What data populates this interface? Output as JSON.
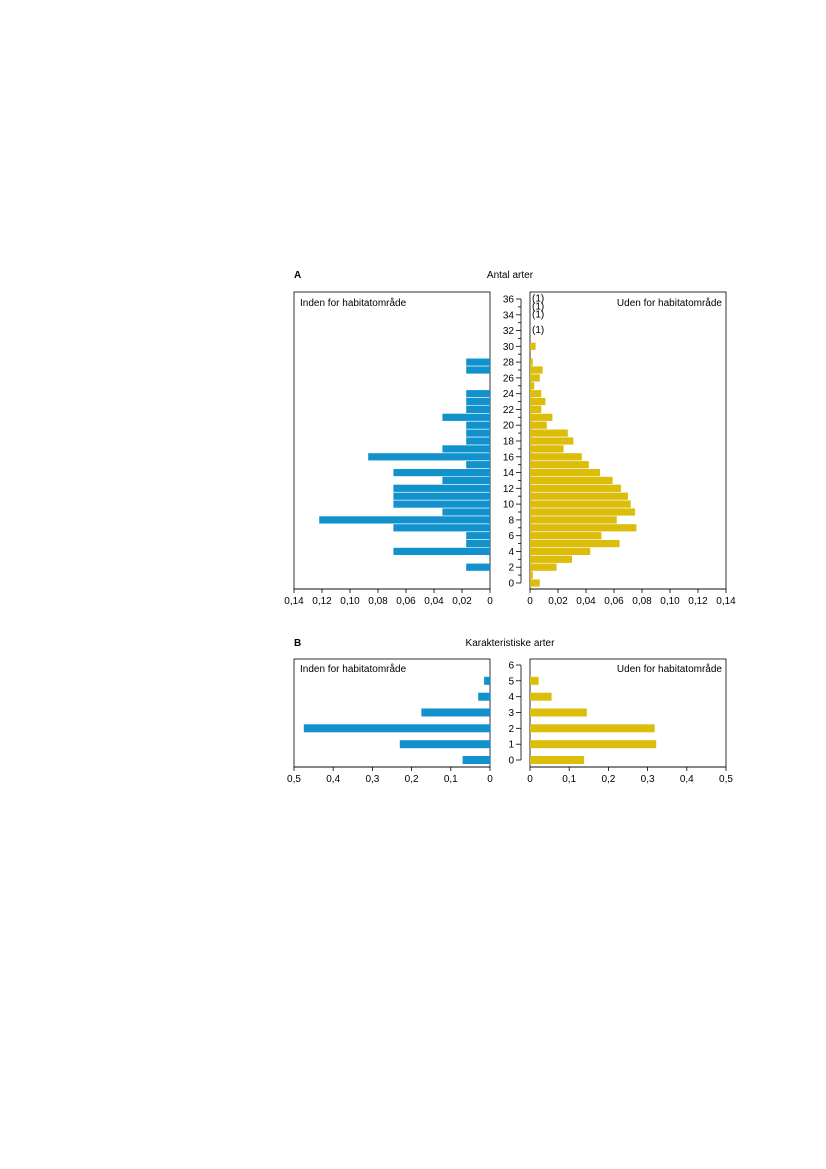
{
  "chart_data": [
    {
      "type": "bar",
      "panel_label": "A",
      "title": "Antal arter",
      "left_label": "Inden for habitatområde",
      "right_label": "Uden for habitatområde",
      "categories": [
        0,
        1,
        2,
        3,
        4,
        5,
        6,
        7,
        8,
        9,
        10,
        11,
        12,
        13,
        14,
        15,
        16,
        17,
        18,
        19,
        20,
        21,
        22,
        23,
        24,
        25,
        26,
        27,
        28,
        29,
        30,
        31,
        32,
        33,
        34,
        35,
        36
      ],
      "category_tick_labels": [
        "0",
        "2",
        "4",
        "6",
        "8",
        "10",
        "12",
        "14",
        "16",
        "18",
        "20",
        "22",
        "24",
        "26",
        "28",
        "30",
        "32",
        "34",
        "36"
      ],
      "colors": {
        "left": "#1192cc",
        "right": "#dbbd0a"
      },
      "series": [
        {
          "values": [
            0,
            0,
            0.017,
            0,
            0.069,
            0.017,
            0.017,
            0.069,
            0.122,
            0.034,
            0.069,
            0.069,
            0.069,
            0.034,
            0.069,
            0.017,
            0.087,
            0.034,
            0.017,
            0.017,
            0.017,
            0.034,
            0.017,
            0.017,
            0.017,
            0,
            0,
            0.017,
            0.017,
            0,
            0,
            0,
            0,
            0,
            0,
            0,
            0
          ]
        },
        {
          "values": [
            0.007,
            0.002,
            0.019,
            0.03,
            0.043,
            0.064,
            0.051,
            0.076,
            0.062,
            0.075,
            0.072,
            0.07,
            0.065,
            0.059,
            0.05,
            0.042,
            0.037,
            0.024,
            0.031,
            0.027,
            0.012,
            0.016,
            0.008,
            0.011,
            0.008,
            0.003,
            0.007,
            0.009,
            0.002,
            0,
            0.004,
            0,
            0,
            0,
            0,
            0,
            0
          ]
        }
      ],
      "annotations": [
        {
          "category": 32,
          "text": "(1)"
        },
        {
          "category": 34,
          "text": "(1)"
        },
        {
          "category": 35,
          "text": "(1)"
        },
        {
          "category": 36,
          "text": "(1)"
        }
      ],
      "xlim": [
        0,
        0.14
      ],
      "xticks": [
        0,
        0.02,
        0.04,
        0.06,
        0.08,
        0.1,
        0.12,
        0.14
      ],
      "xtick_labels_left": [
        "0",
        "0,02",
        "0,04",
        "0,06",
        "0,08",
        "0,10",
        "0,12",
        "0,14"
      ],
      "xtick_labels_right": [
        "0",
        "0,02",
        "0,04",
        "0,06",
        "0,08",
        "0,10",
        "0,12",
        "0,14"
      ],
      "grid": false
    },
    {
      "type": "bar",
      "panel_label": "B",
      "title": "Karakteristiske arter",
      "left_label": "Inden for habitatområde",
      "right_label": "Uden for habitatområde",
      "categories": [
        0,
        1,
        2,
        3,
        4,
        5,
        6
      ],
      "category_tick_labels": [
        "0",
        "1",
        "2",
        "3",
        "4",
        "5",
        "6"
      ],
      "colors": {
        "left": "#1192cc",
        "right": "#dbbd0a"
      },
      "series": [
        {
          "values": [
            0.07,
            0.23,
            0.475,
            0.175,
            0.03,
            0.015,
            0
          ]
        },
        {
          "values": [
            0.138,
            0.322,
            0.318,
            0.145,
            0.055,
            0.022,
            0
          ]
        }
      ],
      "xlim": [
        0,
        0.5
      ],
      "xticks": [
        0,
        0.1,
        0.2,
        0.3,
        0.4,
        0.5
      ],
      "xtick_labels_left": [
        "0",
        "0,1",
        "0,2",
        "0,3",
        "0,4",
        "0,5"
      ],
      "xtick_labels_right": [
        "0",
        "0,1",
        "0,2",
        "0,3",
        "0,4",
        "0,5"
      ],
      "grid": false
    }
  ]
}
